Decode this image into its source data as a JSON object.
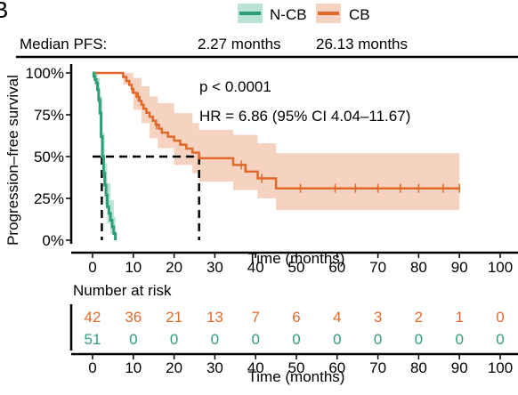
{
  "panel_label": "B",
  "colors": {
    "ncb": "#2e9e78",
    "cb": "#e0692a",
    "cb_band": "#f6d3c0",
    "ncb_band": "#b9e3d2"
  },
  "legend": {
    "items": [
      {
        "name": "N-CB",
        "color": "#2e9e78"
      },
      {
        "name": "CB",
        "color": "#e0692a"
      }
    ]
  },
  "median": {
    "label": "Median PFS:",
    "values": [
      "2.27 months",
      "26.13 months"
    ]
  },
  "chart_data": {
    "type": "line",
    "ylabel": "Progression–free survival",
    "xlabel": "Time (months)",
    "xlim": [
      0,
      100
    ],
    "ylim": [
      0,
      1
    ],
    "x_ticks": [
      0,
      10,
      20,
      30,
      40,
      50,
      60,
      70,
      80,
      90,
      100
    ],
    "x_tick_labels": [
      "0",
      "10",
      "20",
      "30",
      "40",
      "50",
      "60",
      "70",
      "80",
      "90",
      "100"
    ],
    "y_ticks": [
      0,
      0.25,
      0.5,
      0.75,
      1.0
    ],
    "y_tick_labels": [
      "0%",
      "25%",
      "50%",
      "75%",
      "100%"
    ],
    "annotations": [
      "p < 0.0001",
      "HR = 6.86 (95% CI 4.04–11.67)"
    ],
    "median_lines": [
      2.27,
      26.13
    ],
    "series": [
      {
        "name": "N-CB",
        "step_points": [
          [
            0,
            1.0
          ],
          [
            0.3,
            0.98
          ],
          [
            0.6,
            0.96
          ],
          [
            0.9,
            0.94
          ],
          [
            1.2,
            0.9
          ],
          [
            1.5,
            0.84
          ],
          [
            1.8,
            0.76
          ],
          [
            2.1,
            0.62
          ],
          [
            2.4,
            0.5
          ],
          [
            2.7,
            0.4
          ],
          [
            3.0,
            0.33
          ],
          [
            3.3,
            0.27
          ],
          [
            3.6,
            0.2
          ],
          [
            4.0,
            0.16
          ],
          [
            4.4,
            0.12
          ],
          [
            4.8,
            0.08
          ],
          [
            5.2,
            0.04
          ],
          [
            5.6,
            0.0
          ]
        ],
        "ci_upper": [
          [
            0,
            1.0
          ],
          [
            1.2,
            0.97
          ],
          [
            1.8,
            0.86
          ],
          [
            2.4,
            0.64
          ],
          [
            3.0,
            0.46
          ],
          [
            3.6,
            0.34
          ],
          [
            4.4,
            0.24
          ],
          [
            5.2,
            0.14
          ],
          [
            5.6,
            0.06
          ]
        ],
        "ci_lower": [
          [
            0,
            0.97
          ],
          [
            1.2,
            0.82
          ],
          [
            1.8,
            0.66
          ],
          [
            2.4,
            0.38
          ],
          [
            3.0,
            0.21
          ],
          [
            3.6,
            0.1
          ],
          [
            4.4,
            0.04
          ],
          [
            5.2,
            0.0
          ],
          [
            5.6,
            0.0
          ]
        ],
        "censor_times": []
      },
      {
        "name": "CB",
        "step_points": [
          [
            0,
            1.0
          ],
          [
            7.5,
            0.976
          ],
          [
            8.3,
            0.952
          ],
          [
            9.0,
            0.929
          ],
          [
            9.6,
            0.905
          ],
          [
            10.0,
            0.881
          ],
          [
            10.8,
            0.857
          ],
          [
            11.5,
            0.833
          ],
          [
            12.0,
            0.81
          ],
          [
            12.5,
            0.786
          ],
          [
            13.2,
            0.762
          ],
          [
            14.0,
            0.738
          ],
          [
            14.8,
            0.714
          ],
          [
            15.5,
            0.69
          ],
          [
            16.3,
            0.667
          ],
          [
            17.0,
            0.643
          ],
          [
            18.5,
            0.619
          ],
          [
            20.0,
            0.595
          ],
          [
            21.5,
            0.571
          ],
          [
            23.0,
            0.548
          ],
          [
            24.5,
            0.524
          ],
          [
            26.13,
            0.49
          ],
          [
            34.5,
            0.45
          ],
          [
            37.5,
            0.41
          ],
          [
            40.5,
            0.37
          ],
          [
            45.0,
            0.31
          ],
          [
            90,
            0.31
          ]
        ],
        "ci_upper": [
          [
            0,
            1.0
          ],
          [
            7.5,
            1.0
          ],
          [
            10,
            0.97
          ],
          [
            12,
            0.92
          ],
          [
            14,
            0.86
          ],
          [
            16,
            0.82
          ],
          [
            20,
            0.76
          ],
          [
            24.5,
            0.7
          ],
          [
            26.13,
            0.66
          ],
          [
            34.5,
            0.63
          ],
          [
            40.5,
            0.58
          ],
          [
            45,
            0.52
          ],
          [
            90,
            0.52
          ]
        ],
        "ci_lower": [
          [
            0,
            1.0
          ],
          [
            7.5,
            0.93
          ],
          [
            10,
            0.78
          ],
          [
            12,
            0.7
          ],
          [
            14,
            0.61
          ],
          [
            16,
            0.55
          ],
          [
            20,
            0.45
          ],
          [
            24.5,
            0.4
          ],
          [
            26.13,
            0.35
          ],
          [
            34.5,
            0.3
          ],
          [
            40.5,
            0.25
          ],
          [
            45,
            0.18
          ],
          [
            90,
            0.18
          ]
        ],
        "censor_times": [
          9.7,
          11.2,
          15.7,
          36.5,
          41.5,
          51.0,
          59.5,
          64.5,
          70.0,
          75.5,
          80.0,
          86.0,
          90.0
        ]
      }
    ]
  },
  "risk_table": {
    "title": "Number at risk",
    "xlabel": "Time (months)",
    "times": [
      0,
      10,
      20,
      30,
      40,
      50,
      60,
      70,
      80,
      90,
      100
    ],
    "time_labels": [
      "0",
      "10",
      "20",
      "30",
      "40",
      "50",
      "60",
      "70",
      "80",
      "90",
      "100"
    ],
    "rows": [
      {
        "group": "CB",
        "color": "#e0692a",
        "counts": [
          "42",
          "36",
          "21",
          "13",
          "7",
          "6",
          "4",
          "3",
          "2",
          "1",
          "0"
        ]
      },
      {
        "group": "N-CB",
        "color": "#2e9e78",
        "counts": [
          "51",
          "0",
          "0",
          "0",
          "0",
          "0",
          "0",
          "0",
          "0",
          "0",
          "0"
        ]
      }
    ]
  }
}
